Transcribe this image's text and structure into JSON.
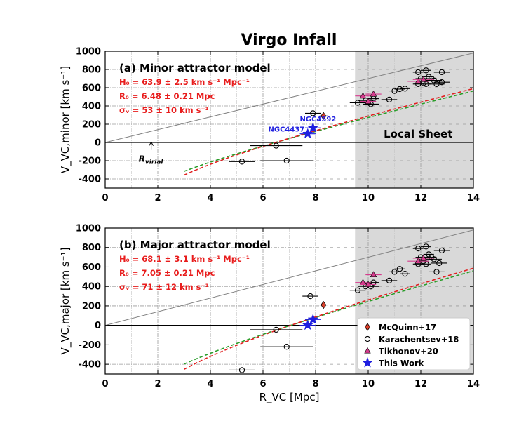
{
  "title": "Virgo Infall",
  "legend": {
    "position": "lower-right",
    "entries": [
      {
        "label": "McQuinn+17",
        "marker": "diamond",
        "color": "#d9402b"
      },
      {
        "label": "Karachentsev+18",
        "marker": "circle-open",
        "color": "#000000"
      },
      {
        "label": "Tikhonov+20",
        "marker": "triangle",
        "color": "#d63c8e"
      },
      {
        "label": "This Work",
        "marker": "star",
        "color": "#1f1fe0"
      }
    ]
  },
  "chart_data": [
    {
      "type": "scatter",
      "panel_label": "(a) Minor attractor model",
      "params": [
        "H₀ = 63.9 ± 2.5 km s⁻¹ Mpc⁻¹",
        "R₀ = 6.48 ± 0.21 Mpc",
        "σᵥ = 53 ± 10 km s⁻¹"
      ],
      "ylabel": "V_VC,minor [km s⁻¹]",
      "xlabel": "",
      "xlim": [
        0,
        14
      ],
      "ylim": [
        -500,
        1000
      ],
      "xticks": [
        "0",
        "2",
        "4",
        "6",
        "8",
        "10",
        "12",
        "14"
      ],
      "yticks": [
        "-400",
        "-200",
        "0",
        "200",
        "400",
        "600",
        "800",
        "1000"
      ],
      "shaded_region": {
        "x_from": 9.5,
        "x_to": 14,
        "label": "Local Sheet"
      },
      "annotations": [
        {
          "text": "NGC4592",
          "x": 7.4,
          "y": 230
        },
        {
          "text": "NGC4437",
          "x": 6.2,
          "y": 120
        },
        {
          "text": "R_virial",
          "x": 1.75,
          "y": -5
        }
      ],
      "hubble_line": {
        "slope": 70,
        "note": "grey line through origin"
      },
      "model_curves": {
        "H0": 63.9,
        "R0": 6.48
      },
      "series": [
        {
          "name": "Karachentsev+18",
          "points": [
            {
              "x": 5.2,
              "y": -210,
              "xerr": 0.5
            },
            {
              "x": 6.5,
              "y": -35,
              "xerr": 1.0
            },
            {
              "x": 6.9,
              "y": -200,
              "xerr": 1.0
            },
            {
              "x": 7.9,
              "y": 320,
              "xerr": 0.3
            },
            {
              "x": 9.6,
              "y": 435,
              "xerr": 0.3
            },
            {
              "x": 9.9,
              "y": 460,
              "xerr": 0.3
            },
            {
              "x": 10.1,
              "y": 420,
              "xerr": 0.3
            },
            {
              "x": 10.2,
              "y": 480,
              "xerr": 0.2
            },
            {
              "x": 10.8,
              "y": 470,
              "xerr": 0.3
            },
            {
              "x": 11.0,
              "y": 565,
              "xerr": 0.2
            },
            {
              "x": 11.2,
              "y": 585,
              "xerr": 0.2
            },
            {
              "x": 11.4,
              "y": 590,
              "xerr": 0.2
            },
            {
              "x": 11.9,
              "y": 770,
              "xerr": 0.2
            },
            {
              "x": 12.2,
              "y": 790,
              "xerr": 0.2
            },
            {
              "x": 12.8,
              "y": 770,
              "xerr": 0.3
            },
            {
              "x": 12.0,
              "y": 700,
              "xerr": 0.2
            },
            {
              "x": 12.3,
              "y": 720,
              "xerr": 0.2
            },
            {
              "x": 12.4,
              "y": 700,
              "xerr": 0.2
            },
            {
              "x": 12.1,
              "y": 650,
              "xerr": 0.2
            },
            {
              "x": 12.5,
              "y": 680,
              "xerr": 0.3
            },
            {
              "x": 12.6,
              "y": 640,
              "xerr": 0.3
            },
            {
              "x": 12.8,
              "y": 660,
              "xerr": 0.3
            },
            {
              "x": 11.9,
              "y": 640,
              "xerr": 0.2
            },
            {
              "x": 12.2,
              "y": 640,
              "xerr": 0.2
            }
          ]
        },
        {
          "name": "McQuinn+17",
          "points": [
            {
              "x": 8.3,
              "y": 290,
              "xerr": 0.15
            }
          ]
        },
        {
          "name": "Tikhonov+20",
          "points": [
            {
              "x": 9.8,
              "y": 510,
              "xerr": 0.3
            },
            {
              "x": 10.2,
              "y": 530,
              "xerr": 0.3
            },
            {
              "x": 10.0,
              "y": 450,
              "xerr": 0.3
            },
            {
              "x": 11.9,
              "y": 670,
              "xerr": 0.4
            },
            {
              "x": 12.1,
              "y": 690,
              "xerr": 0.4
            }
          ]
        },
        {
          "name": "This Work",
          "points": [
            {
              "x": 7.9,
              "y": 160,
              "xerr": 0.3
            },
            {
              "x": 7.7,
              "y": 95,
              "xerr": 0.3
            }
          ]
        }
      ]
    },
    {
      "type": "scatter",
      "panel_label": "(b) Major attractor model",
      "params": [
        "H₀ = 68.1 ± 3.1 km s⁻¹ Mpc⁻¹",
        "R₀ = 7.05 ± 0.21 Mpc",
        "σᵥ = 71 ± 12 km s⁻¹"
      ],
      "ylabel": "V_VC,major [km s⁻¹]",
      "xlabel": "R_VC [Mpc]",
      "xlim": [
        0,
        14
      ],
      "ylim": [
        -500,
        1000
      ],
      "xticks": [
        "0",
        "2",
        "4",
        "6",
        "8",
        "10",
        "12",
        "14"
      ],
      "yticks": [
        "-400",
        "-200",
        "0",
        "200",
        "400",
        "600",
        "800",
        "1000"
      ],
      "shaded_region": {
        "x_from": 9.5,
        "x_to": 14,
        "label": ""
      },
      "annotations": [],
      "hubble_line": {
        "slope": 70,
        "note": "grey line through origin"
      },
      "model_curves": {
        "H0": 68.1,
        "R0": 7.05
      },
      "series": [
        {
          "name": "Karachentsev+18",
          "points": [
            {
              "x": 5.2,
              "y": -460,
              "xerr": 0.5
            },
            {
              "x": 6.5,
              "y": -45,
              "xerr": 1.0
            },
            {
              "x": 6.9,
              "y": -220,
              "xerr": 1.0
            },
            {
              "x": 7.8,
              "y": 300,
              "xerr": 0.3
            },
            {
              "x": 9.6,
              "y": 360,
              "xerr": 0.3
            },
            {
              "x": 9.9,
              "y": 400,
              "xerr": 0.3
            },
            {
              "x": 10.1,
              "y": 400,
              "xerr": 0.3
            },
            {
              "x": 10.2,
              "y": 440,
              "xerr": 0.2
            },
            {
              "x": 10.8,
              "y": 460,
              "xerr": 0.3
            },
            {
              "x": 11.0,
              "y": 550,
              "xerr": 0.2
            },
            {
              "x": 11.2,
              "y": 580,
              "xerr": 0.2
            },
            {
              "x": 11.4,
              "y": 530,
              "xerr": 0.2
            },
            {
              "x": 11.9,
              "y": 790,
              "xerr": 0.2
            },
            {
              "x": 12.2,
              "y": 810,
              "xerr": 0.2
            },
            {
              "x": 12.8,
              "y": 770,
              "xerr": 0.3
            },
            {
              "x": 12.0,
              "y": 700,
              "xerr": 0.2
            },
            {
              "x": 12.3,
              "y": 730,
              "xerr": 0.2
            },
            {
              "x": 12.4,
              "y": 700,
              "xerr": 0.2
            },
            {
              "x": 12.1,
              "y": 660,
              "xerr": 0.2
            },
            {
              "x": 12.5,
              "y": 680,
              "xerr": 0.3
            },
            {
              "x": 12.7,
              "y": 640,
              "xerr": 0.3
            },
            {
              "x": 12.6,
              "y": 550,
              "xerr": 0.3
            },
            {
              "x": 11.9,
              "y": 630,
              "xerr": 0.2
            },
            {
              "x": 12.2,
              "y": 630,
              "xerr": 0.2
            }
          ]
        },
        {
          "name": "McQuinn+17",
          "points": [
            {
              "x": 8.3,
              "y": 210,
              "xerr": 0.15
            }
          ]
        },
        {
          "name": "Tikhonov+20",
          "points": [
            {
              "x": 9.8,
              "y": 440,
              "xerr": 0.3
            },
            {
              "x": 10.2,
              "y": 520,
              "xerr": 0.3
            },
            {
              "x": 10.0,
              "y": 420,
              "xerr": 0.3
            },
            {
              "x": 11.9,
              "y": 660,
              "xerr": 0.4
            },
            {
              "x": 12.1,
              "y": 690,
              "xerr": 0.4
            }
          ]
        },
        {
          "name": "This Work",
          "points": [
            {
              "x": 7.9,
              "y": 60,
              "xerr": 0.3
            },
            {
              "x": 7.7,
              "y": 0,
              "xerr": 0.3
            }
          ]
        }
      ]
    }
  ]
}
